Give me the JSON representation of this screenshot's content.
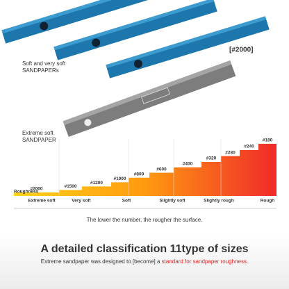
{
  "products": {
    "soft_label": [
      "Soft and very soft",
      "SANDPAPERs"
    ],
    "featured_grit": "[#2000]",
    "extreme_label": [
      "Extreme soft",
      "SANDPAPER"
    ]
  },
  "scale": {
    "axis_label": "Roughness",
    "grits": [
      "#2000",
      "#1500",
      "#1200",
      "#1000",
      "#800",
      "#600",
      "#400",
      "#320",
      "#280",
      "#240",
      "#180"
    ],
    "levels": [
      "Extreme soft",
      "Very soft",
      "Soft",
      "Slightly soft",
      "Slightly rough",
      "Rough"
    ],
    "caption": "The lower the number, the rougher the surface."
  },
  "footer": {
    "title": "A detailed classification 11type of sizes",
    "subtitle": "Extreme sandpaper was designed to [become] a ",
    "highlight": "standard for sandpaper roughness."
  }
}
